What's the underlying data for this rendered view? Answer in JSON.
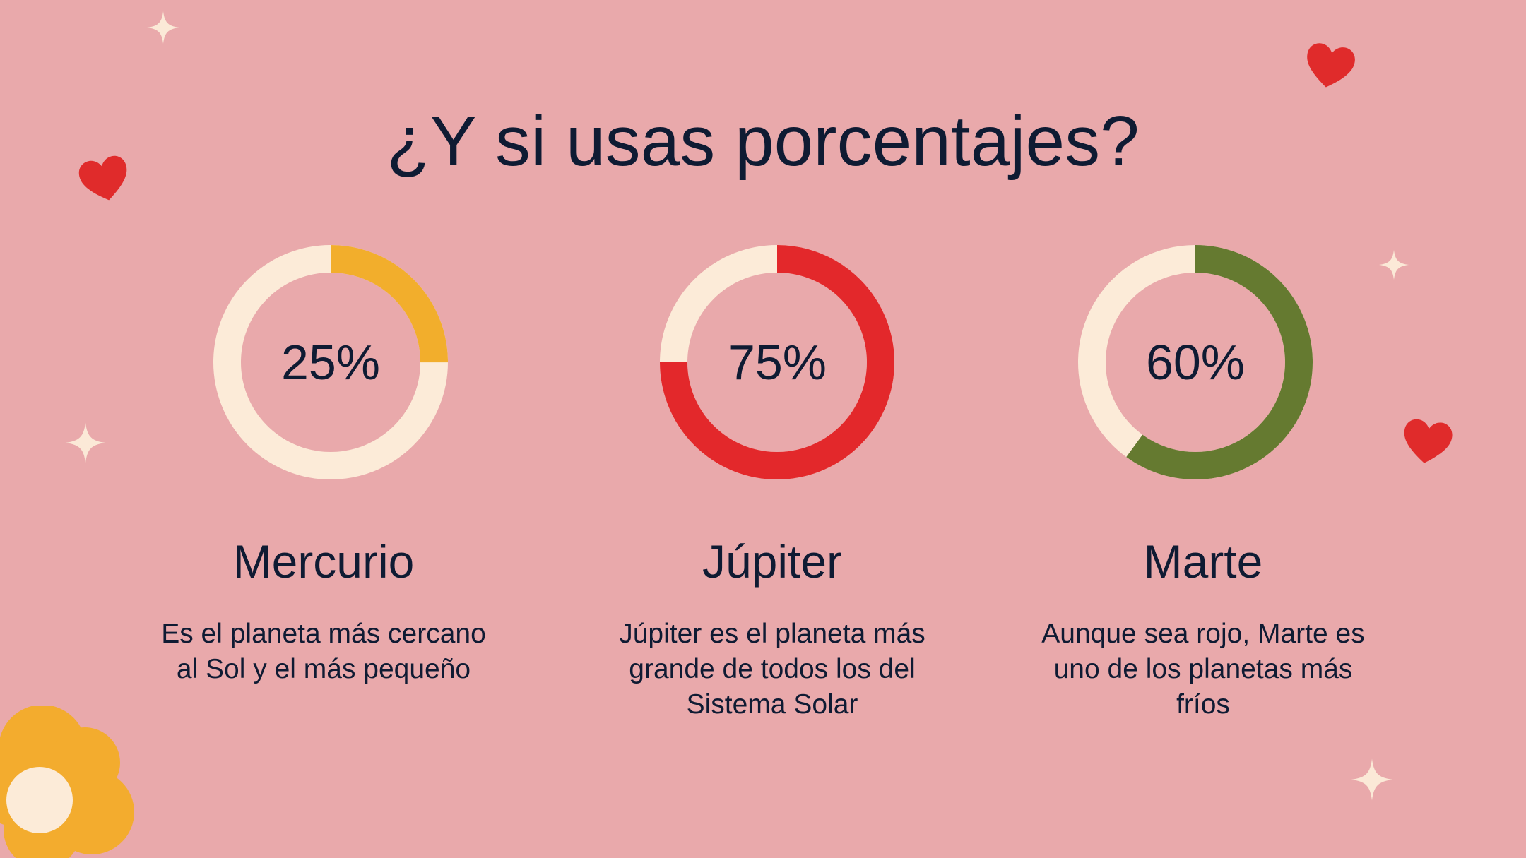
{
  "title": "¿Y si usas porcentajes?",
  "colors": {
    "background": "#e9a9ab",
    "track": "#fcebd8",
    "text": "#0f1b33",
    "heart": "#e02b2b",
    "flower": "#f3ac2e",
    "sparkle": "#fbe9d7"
  },
  "chart_data": {
    "type": "donut",
    "items": [
      {
        "label": "Mercurio",
        "value": 25,
        "value_label": "25%",
        "color": "#f2ae2c",
        "description": "Es el planeta más cercano al Sol y el más pequeño"
      },
      {
        "label": "Júpiter",
        "value": 75,
        "value_label": "75%",
        "color": "#e3282b",
        "description": "Júpiter es el planeta más grande de todos los del Sistema Solar"
      },
      {
        "label": "Marte",
        "value": 60,
        "value_label": "60%",
        "color": "#657a30",
        "description": "Aunque sea rojo, Marte es uno de los planetas más fríos"
      }
    ]
  },
  "decorations": [
    "sparkle-icon",
    "heart-icon",
    "flower-icon"
  ]
}
